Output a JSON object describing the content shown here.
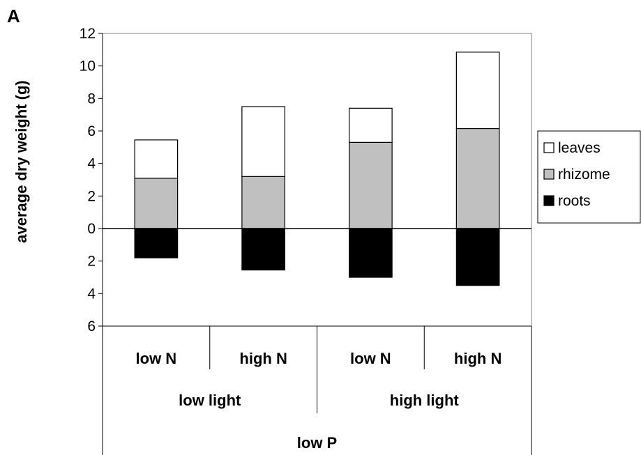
{
  "panel_label": "A",
  "chart_data": {
    "type": "bar",
    "stacked": true,
    "ylabel": "average dry weight (g)",
    "ylim": [
      -6,
      12
    ],
    "yticks": [
      12,
      10,
      8,
      6,
      4,
      2,
      0,
      -2,
      -4,
      -6
    ],
    "ytick_labels": [
      "12",
      "10",
      "8",
      "6",
      "4",
      "2",
      "0",
      "2",
      "4",
      "6"
    ],
    "categories": [
      "low N",
      "high N",
      "low N",
      "high N"
    ],
    "groups": [
      {
        "label": "low light",
        "span": [
          0,
          1
        ]
      },
      {
        "label": "high light",
        "span": [
          2,
          3
        ]
      }
    ],
    "outer_group": "low P",
    "grid": false,
    "legend_position": "right",
    "series": [
      {
        "name": "leaves",
        "color": "#ffffff",
        "values": [
          2.35,
          4.3,
          2.1,
          4.7
        ]
      },
      {
        "name": "rhizome",
        "color": "#c0c0c0",
        "values": [
          3.1,
          3.2,
          5.3,
          6.15
        ]
      },
      {
        "name": "roots",
        "color": "#000000",
        "values": [
          -1.8,
          -2.55,
          -3.0,
          -3.5
        ]
      }
    ]
  }
}
